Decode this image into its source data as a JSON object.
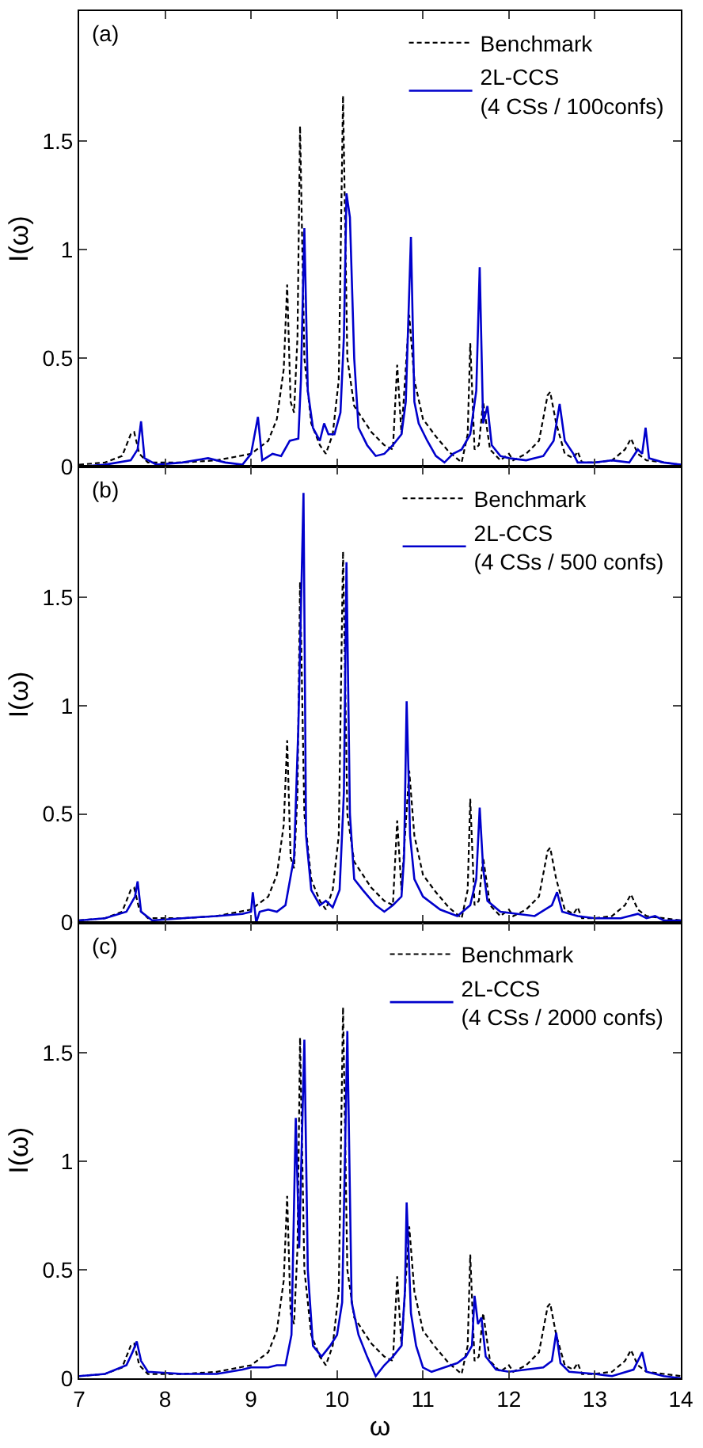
{
  "chart_data": [
    {
      "type": "line",
      "ylabel": "I(ω)",
      "xlim": [
        7,
        14
      ],
      "xticks": [
        7,
        8,
        9,
        10,
        11,
        12,
        13,
        14
      ],
      "ylim": [
        0,
        2.1
      ],
      "yticks": [
        0,
        0.5,
        1,
        1.5
      ],
      "tick_labels": "y",
      "grid": false,
      "legend": "top right",
      "marker": "none",
      "annotations": [
        "(a)"
      ],
      "series": [
        {
          "name": "Benchmark",
          "color": "#000000",
          "line_style": "dashed",
          "x": [
            7.0,
            7.3,
            7.5,
            7.6,
            7.64,
            7.7,
            7.8,
            8.2,
            8.6,
            9.0,
            9.2,
            9.3,
            9.38,
            9.42,
            9.46,
            9.5,
            9.54,
            9.57,
            9.62,
            9.7,
            9.8,
            9.87,
            9.95,
            10.02,
            10.07,
            10.12,
            10.2,
            10.4,
            10.55,
            10.65,
            10.7,
            10.75,
            10.84,
            10.9,
            11.0,
            11.15,
            11.3,
            11.45,
            11.52,
            11.55,
            11.6,
            11.65,
            11.7,
            11.78,
            11.9,
            12.0,
            12.05,
            12.2,
            12.35,
            12.45,
            12.48,
            12.55,
            12.65,
            12.75,
            12.8,
            12.85,
            13.0,
            13.2,
            13.35,
            13.42,
            13.5,
            13.6,
            13.8,
            14.0
          ],
          "values": [
            0.01,
            0.02,
            0.05,
            0.15,
            0.16,
            0.06,
            0.02,
            0.02,
            0.03,
            0.06,
            0.12,
            0.22,
            0.45,
            0.84,
            0.3,
            0.25,
            0.6,
            1.57,
            0.5,
            0.2,
            0.1,
            0.06,
            0.15,
            0.4,
            1.71,
            0.5,
            0.28,
            0.16,
            0.1,
            0.08,
            0.47,
            0.15,
            0.7,
            0.4,
            0.22,
            0.14,
            0.07,
            0.02,
            0.15,
            0.57,
            0.08,
            0.1,
            0.3,
            0.08,
            0.03,
            0.06,
            0.03,
            0.06,
            0.12,
            0.33,
            0.345,
            0.2,
            0.06,
            0.04,
            0.07,
            0.02,
            0.02,
            0.03,
            0.08,
            0.13,
            0.06,
            0.03,
            0.02,
            0.01
          ]
        },
        {
          "name": "2L-CCS\n(4 CSs / 100confs)",
          "color": "#0000cc",
          "line_style": "solid",
          "x": [
            7.0,
            7.3,
            7.6,
            7.68,
            7.72,
            7.76,
            7.9,
            8.2,
            8.5,
            8.7,
            8.9,
            9.0,
            9.08,
            9.13,
            9.25,
            9.35,
            9.45,
            9.55,
            9.58,
            9.62,
            9.66,
            9.72,
            9.8,
            9.85,
            9.9,
            9.97,
            10.04,
            10.08,
            10.11,
            10.15,
            10.2,
            10.25,
            10.35,
            10.45,
            10.55,
            10.65,
            10.75,
            10.8,
            10.86,
            10.9,
            10.95,
            11.05,
            11.15,
            11.25,
            11.35,
            11.45,
            11.55,
            11.62,
            11.66,
            11.7,
            11.75,
            11.8,
            11.9,
            12.0,
            12.2,
            12.4,
            12.52,
            12.59,
            12.65,
            12.75,
            12.8,
            13.0,
            13.2,
            13.4,
            13.5,
            13.55,
            13.59,
            13.63,
            13.8,
            14.0
          ],
          "values": [
            0.0,
            0.01,
            0.03,
            0.08,
            0.21,
            0.04,
            0.01,
            0.02,
            0.04,
            0.02,
            0.01,
            0.06,
            0.23,
            0.03,
            0.06,
            0.05,
            0.12,
            0.13,
            0.4,
            1.1,
            0.35,
            0.18,
            0.12,
            0.2,
            0.15,
            0.15,
            0.25,
            0.6,
            1.26,
            1.15,
            0.5,
            0.18,
            0.1,
            0.05,
            0.06,
            0.1,
            0.15,
            0.3,
            1.06,
            0.3,
            0.2,
            0.12,
            0.05,
            0.02,
            0.06,
            0.08,
            0.15,
            0.35,
            0.92,
            0.2,
            0.28,
            0.1,
            0.05,
            0.04,
            0.03,
            0.05,
            0.12,
            0.29,
            0.12,
            0.06,
            0.02,
            0.02,
            0.03,
            0.02,
            0.08,
            0.06,
            0.18,
            0.04,
            0.02,
            0.01
          ]
        }
      ]
    },
    {
      "type": "line",
      "ylabel": "I(ω)",
      "xlim": [
        7,
        14
      ],
      "xticks": [
        7,
        8,
        9,
        10,
        11,
        12,
        13,
        14
      ],
      "ylim": [
        0,
        2.1
      ],
      "yticks": [
        0,
        0.5,
        1,
        1.5
      ],
      "tick_labels": "y",
      "grid": false,
      "legend": "top right",
      "marker": "none",
      "annotations": [
        "(b)"
      ],
      "series": [
        {
          "name": "Benchmark",
          "color": "#000000",
          "line_style": "dashed",
          "x": [
            7.0,
            7.3,
            7.5,
            7.6,
            7.64,
            7.7,
            7.8,
            8.2,
            8.6,
            9.0,
            9.2,
            9.3,
            9.38,
            9.42,
            9.46,
            9.5,
            9.54,
            9.57,
            9.62,
            9.7,
            9.8,
            9.87,
            9.95,
            10.02,
            10.07,
            10.12,
            10.2,
            10.4,
            10.55,
            10.65,
            10.7,
            10.75,
            10.84,
            10.9,
            11.0,
            11.15,
            11.3,
            11.45,
            11.52,
            11.55,
            11.6,
            11.65,
            11.7,
            11.78,
            11.9,
            12.0,
            12.05,
            12.2,
            12.35,
            12.45,
            12.48,
            12.55,
            12.65,
            12.75,
            12.8,
            12.85,
            13.0,
            13.2,
            13.35,
            13.42,
            13.5,
            13.6,
            13.8,
            14.0
          ],
          "values": [
            0.01,
            0.02,
            0.05,
            0.15,
            0.16,
            0.06,
            0.02,
            0.02,
            0.03,
            0.06,
            0.12,
            0.22,
            0.45,
            0.84,
            0.3,
            0.25,
            0.6,
            1.57,
            0.5,
            0.2,
            0.1,
            0.06,
            0.15,
            0.4,
            1.71,
            0.5,
            0.28,
            0.16,
            0.1,
            0.08,
            0.47,
            0.15,
            0.7,
            0.4,
            0.22,
            0.14,
            0.07,
            0.02,
            0.15,
            0.57,
            0.08,
            0.1,
            0.3,
            0.08,
            0.03,
            0.06,
            0.03,
            0.06,
            0.12,
            0.33,
            0.345,
            0.2,
            0.06,
            0.04,
            0.07,
            0.02,
            0.02,
            0.03,
            0.08,
            0.13,
            0.06,
            0.03,
            0.02,
            0.01
          ]
        },
        {
          "name": "2L-CCS\n(4 CSs / 500 confs)",
          "color": "#0000cc",
          "line_style": "solid",
          "x": [
            7.0,
            7.3,
            7.55,
            7.65,
            7.68,
            7.72,
            7.85,
            8.2,
            8.6,
            8.9,
            9.0,
            9.02,
            9.06,
            9.1,
            9.2,
            9.3,
            9.4,
            9.5,
            9.55,
            9.61,
            9.64,
            9.7,
            9.8,
            9.87,
            9.95,
            10.03,
            10.08,
            10.11,
            10.15,
            10.2,
            10.3,
            10.45,
            10.55,
            10.65,
            10.75,
            10.78,
            10.81,
            10.85,
            10.9,
            11.0,
            11.2,
            11.4,
            11.55,
            11.62,
            11.66,
            11.7,
            11.75,
            11.9,
            12.1,
            12.3,
            12.5,
            12.56,
            12.62,
            12.8,
            13.0,
            13.3,
            13.5,
            13.6,
            13.7,
            13.8,
            14.0
          ],
          "values": [
            0.01,
            0.02,
            0.05,
            0.12,
            0.19,
            0.05,
            0.01,
            0.02,
            0.03,
            0.04,
            0.05,
            0.14,
            0.0,
            0.05,
            0.06,
            0.05,
            0.08,
            0.3,
            0.9,
            1.98,
            0.4,
            0.15,
            0.08,
            0.1,
            0.07,
            0.15,
            0.6,
            1.66,
            0.5,
            0.2,
            0.15,
            0.08,
            0.05,
            0.08,
            0.12,
            0.3,
            1.02,
            0.4,
            0.2,
            0.12,
            0.06,
            0.03,
            0.08,
            0.2,
            0.53,
            0.25,
            0.1,
            0.05,
            0.04,
            0.03,
            0.08,
            0.14,
            0.05,
            0.03,
            0.02,
            0.02,
            0.04,
            0.02,
            0.03,
            0.01,
            0.01
          ]
        }
      ]
    },
    {
      "type": "line",
      "xlabel": "ω",
      "ylabel": "I(ω)",
      "xlim": [
        7,
        14
      ],
      "xticks": [
        7,
        8,
        9,
        10,
        11,
        12,
        13,
        14
      ],
      "ylim": [
        0,
        2.1
      ],
      "yticks": [
        0,
        0.5,
        1,
        1.5
      ],
      "grid": false,
      "legend": "top right",
      "marker": "none",
      "annotations": [
        "(c)"
      ],
      "series": [
        {
          "name": "Benchmark",
          "color": "#000000",
          "line_style": "dashed",
          "x": [
            7.0,
            7.3,
            7.5,
            7.6,
            7.64,
            7.7,
            7.8,
            8.2,
            8.6,
            9.0,
            9.2,
            9.3,
            9.38,
            9.42,
            9.46,
            9.5,
            9.54,
            9.57,
            9.62,
            9.7,
            9.8,
            9.87,
            9.95,
            10.02,
            10.07,
            10.12,
            10.2,
            10.4,
            10.55,
            10.65,
            10.7,
            10.75,
            10.84,
            10.9,
            11.0,
            11.15,
            11.3,
            11.45,
            11.52,
            11.55,
            11.6,
            11.65,
            11.7,
            11.78,
            11.9,
            12.0,
            12.05,
            12.2,
            12.35,
            12.45,
            12.48,
            12.55,
            12.65,
            12.75,
            12.8,
            12.85,
            13.0,
            13.2,
            13.35,
            13.42,
            13.5,
            13.6,
            13.8,
            14.0
          ],
          "values": [
            0.01,
            0.02,
            0.05,
            0.15,
            0.16,
            0.06,
            0.02,
            0.02,
            0.03,
            0.06,
            0.12,
            0.22,
            0.45,
            0.84,
            0.3,
            0.25,
            0.6,
            1.57,
            0.5,
            0.2,
            0.1,
            0.06,
            0.15,
            0.4,
            1.71,
            0.5,
            0.28,
            0.16,
            0.1,
            0.08,
            0.47,
            0.15,
            0.7,
            0.4,
            0.22,
            0.14,
            0.07,
            0.02,
            0.15,
            0.57,
            0.08,
            0.1,
            0.3,
            0.08,
            0.03,
            0.06,
            0.03,
            0.06,
            0.12,
            0.33,
            0.345,
            0.2,
            0.06,
            0.04,
            0.07,
            0.02,
            0.02,
            0.03,
            0.08,
            0.13,
            0.06,
            0.03,
            0.02,
            0.01
          ]
        },
        {
          "name": "2L-CCS\n(4 CSs / 2000 confs)",
          "color": "#0000cc",
          "line_style": "solid",
          "x": [
            7.0,
            7.3,
            7.55,
            7.62,
            7.67,
            7.72,
            7.8,
            8.2,
            8.6,
            8.9,
            9.0,
            9.1,
            9.2,
            9.3,
            9.4,
            9.47,
            9.52,
            9.56,
            9.62,
            9.66,
            9.72,
            9.82,
            9.92,
            10.0,
            10.06,
            10.12,
            10.17,
            10.25,
            10.35,
            10.45,
            10.55,
            10.65,
            10.75,
            10.79,
            10.81,
            10.86,
            10.92,
            11.0,
            11.1,
            11.25,
            11.4,
            11.5,
            11.57,
            11.6,
            11.64,
            11.68,
            11.73,
            11.85,
            12.0,
            12.2,
            12.4,
            12.5,
            12.55,
            12.6,
            12.7,
            13.0,
            13.2,
            13.45,
            13.55,
            13.6,
            13.8,
            14.0
          ],
          "values": [
            0.01,
            0.02,
            0.06,
            0.12,
            0.17,
            0.08,
            0.03,
            0.02,
            0.02,
            0.04,
            0.05,
            0.05,
            0.05,
            0.06,
            0.06,
            0.2,
            1.2,
            0.6,
            1.56,
            0.5,
            0.15,
            0.1,
            0.15,
            0.2,
            0.35,
            1.6,
            0.35,
            0.2,
            0.1,
            0.01,
            0.06,
            0.1,
            0.15,
            0.4,
            0.81,
            0.3,
            0.15,
            0.05,
            0.03,
            0.05,
            0.07,
            0.1,
            0.15,
            0.38,
            0.25,
            0.28,
            0.1,
            0.04,
            0.03,
            0.04,
            0.05,
            0.08,
            0.21,
            0.07,
            0.03,
            0.02,
            0.01,
            0.04,
            0.12,
            0.03,
            0.01,
            0.0
          ]
        }
      ]
    }
  ]
}
